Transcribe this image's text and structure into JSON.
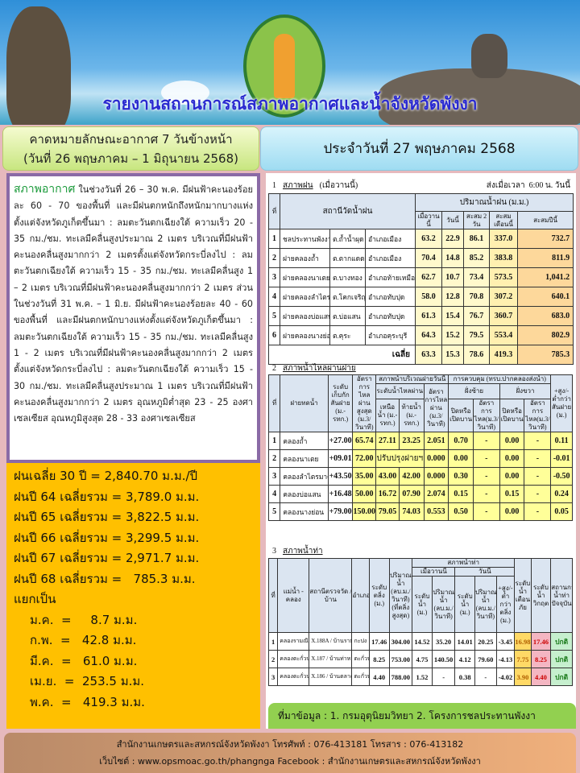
{
  "header": {
    "title": "รายงานสถานการณ์สภาพอากาศและน้ำจังหวัดพังงา",
    "logo_text": "กระทรวงเกษตรและสหกรณ์ MINISTRY OF AGRICULTURE AND COOPERATIVES"
  },
  "forecast": {
    "line1": "คาดหมายลักษณะอากาศ 7 วันข้างหน้า",
    "line2": "(วันที่ 26 พฤษภาคม – 1 มิถุนายน 2568)"
  },
  "report_date": "ประจำวันที่ 27 พฤษภาคม 2568",
  "weather": {
    "heading": "สภาพอากาศ",
    "body": " ในช่วงวันที่ 26 – 30 พ.ค. มีฝนฟ้าคะนองร้อยละ 60 - 70 ของพื้นที่ และมีฝนตกหนักถึงหนักมากบางแห่งตั้งแต่จังหวัดภูเก็ตขึ้นมา : ลมตะวันตกเฉียงใต้ ความเร็ว 20 - 35 กม./ชม. ทะเลมีคลื่นสูงประมาณ 2 เมตร บริเวณที่มีฝนฟ้าคะนองคลื่นสูงมากกว่า 2 เมตรตั้งแต่จังหวัดกระบี่ลงไป : ลมตะวันตกเฉียงใต้ ความเร็ว 15 - 35 กม./ชม. ทะเลมีคลื่นสูง 1 – 2 เมตร บริเวณที่มีฝนฟ้าคะนองคลื่นสูงมากกว่า 2 เมตร ส่วนในช่วงวันที่ 31 พ.ค. – 1 มิ.ย. มีฝนฟ้าคะนองร้อยละ 40 - 60 ของพื้นที่ และมีฝนตกหนักบางแห่งตั้งแต่จังหวัดภูเก็ตขึ้นมา : ลมตะวันตกเฉียงใต้ ความเร็ว 15 - 35 กม./ชม. ทะเลมีคลื่นสูง 1 - 2 เมตร บริเวณที่มีฝนฟ้าคะนองคลื่นสูงมากกว่า 2 เมตรตั้งแต่จังหวัดกระบี่ลงไป : ลมตะวันตกเฉียงใต้ ความเร็ว 15 - 30 กม./ชม. ทะเลมีคลื่นสูงประมาณ 1 เมตร บริเวณที่มีฝนฟ้าคะนองคลื่นสูงมากกว่า 2 เมตร อุณหภูมิต่ำสุด 23 - 25 องศาเซลเซียส อุณหภูมิสูงสุด 28 - 33 องศาเซลเซียส"
  },
  "rainfall_summary": {
    "lines": [
      "ฝนเฉลี่ย 30 ปี = 2,840.70 ม.ม./ปี",
      "ฝนปี 64 เฉลี่ยรวม = 3,789.0 ม.ม.",
      "ฝนปี 65 เฉลี่ยรวม = 3,822.5 ม.ม.",
      "ฝนปี 66 เฉลี่ยรวม = 3,299.5 ม.ม.",
      "ฝนปี 67 เฉลี่ยรวม = 2,971.7 ม.ม.",
      "ฝนปี 68 เฉลี่ยรวม =   785.3 ม.ม.",
      "แยกเป็น"
    ],
    "months": [
      "ม.ค.  =     8.7 ม.ม.",
      "ก.พ.  =   42.8 ม.ม.",
      "มี.ค.  =   61.0 ม.ม.",
      "เม.ย.  =  253.5 ม.ม.",
      "พ.ค.  =   419.3 ม.ม."
    ]
  },
  "table1": {
    "num": "1",
    "title": "สภาพฝน",
    "subtitle": "(เมื่อวานนี้)",
    "time_label": "ส่งเมื่อเวลา",
    "time": "6:00 น.",
    "time_suffix": "วันนี้",
    "headers": {
      "no": "ที่",
      "station": "สถานีวัดน้ำฝน",
      "group": "ปริมาณน้ำฝน (ม.ม.)",
      "cols": [
        "เมื่อวานนี้",
        "วันนี้",
        "สะสม 2 วัน",
        "สะสมเดือนนี้",
        "สะสมปีนี้"
      ]
    },
    "rows": [
      [
        "1",
        "ชลประทานพังงา",
        "ต.ถ้ำน้ำผุด",
        "อำเภอเมือง",
        "63.2",
        "22.9",
        "86.1",
        "337.0",
        "732.7"
      ],
      [
        "2",
        "ฝายคลองถ้ำ",
        "ต.ตากแดด",
        "อำเภอเมือง",
        "70.4",
        "14.8",
        "85.2",
        "383.8",
        "811.9"
      ],
      [
        "3",
        "ฝายคลองนาเตย",
        "ต.บางทอง",
        "อำเภอท้ายเหมือง",
        "62.7",
        "10.7",
        "73.4",
        "573.5",
        "1,041.2"
      ],
      [
        "4",
        "ฝายคลองลำไตรมาศ",
        "ต.โคกเจริญ",
        "อำเภอทับปุด",
        "58.0",
        "12.8",
        "70.8",
        "307.2",
        "640.1"
      ],
      [
        "5",
        "ฝายคลองบ่อแสน",
        "ต.บ่อแสน",
        "อำเภอทับปุด",
        "61.3",
        "15.4",
        "76.7",
        "360.7",
        "683.0"
      ],
      [
        "6",
        "ฝายคลองนางย่อน",
        "ต.คุระ",
        "อำเภอคุระบุรี",
        "64.3",
        "15.2",
        "79.5",
        "553.4",
        "802.9"
      ]
    ],
    "avg": {
      "label": "เฉลี่ย",
      "values": [
        "63.3",
        "15.3",
        "78.6",
        "419.3",
        "785.3"
      ]
    }
  },
  "table2": {
    "num": "2",
    "title": "สภาพน้ำไหลผ่านฝาย",
    "headers": {
      "no": "ที่",
      "weir": "ฝายทดน้ำ",
      "crest": "ระดับเก็บกักสันฝาย (ม.-รทก.)",
      "maxflow": "อัตราการไหลผ่านสูงสุด (ม.3/วินาที)",
      "today": "สภาพน้ำบริเวณฝายวันนี้",
      "level": "ระดับน้ำไหลผ่าน",
      "up": "เหนือน้ำ (ม.-รทก.)",
      "down": "ท้ายน้ำ (ม.-รทก.)",
      "rate": "อัตราการไหลผ่าน (ม.3/วินาที)",
      "control": "การควบคุม (ทรบ.ปากคลองส่งน้ำ)",
      "left": "ฝั่งซ้าย",
      "right": "ฝั่งขวา",
      "gate": "ปิดหรือเปิดบาน",
      "gaterate": "อัตราการไหล(ม.3/วินาที)",
      "diff": "+สูง/-ต่ำกว่าสันฝาย (ม.)"
    },
    "rows": [
      [
        "1",
        "คลองถ้ำ",
        "+27.00",
        "65.74",
        "27.11",
        "23.25",
        "2.051",
        "0.70",
        "-",
        "0.00",
        "-",
        "0.11"
      ],
      [
        "2",
        "คลองนาเตย",
        "+09.01",
        "72.00",
        "ปรับปรุงฝายฯ",
        "",
        "0.000",
        "0.00",
        "-",
        "0.00",
        "-",
        "-0.01"
      ],
      [
        "3",
        "คลองลำไตรมาศ",
        "+43.50",
        "35.00",
        "43.00",
        "42.00",
        "0.000",
        "0.30",
        "-",
        "0.00",
        "-",
        "-0.50"
      ],
      [
        "4",
        "คลองบ่อแสน",
        "+16.48",
        "50.00",
        "16.72",
        "07.90",
        "2.074",
        "0.15",
        "-",
        "0.15",
        "-",
        "0.24"
      ],
      [
        "5",
        "คลองนางย่อน",
        "+79.00",
        "150.00",
        "79.05",
        "74.03",
        "0.553",
        "0.50",
        "-",
        "0.00",
        "-",
        "0.05"
      ]
    ]
  },
  "table3": {
    "num": "3",
    "title": "สภาพน้ำท่า",
    "headers": {
      "no": "ที่",
      "river": "แม่น้ำ - คลอง",
      "station": "สถานีตรวจวัด / บ้าน",
      "district": "อำเภอ",
      "bank": "ระดับตลิ่ง (ม.)",
      "capacity": "ปริมาณน้ำ (ลบ.ม./วินาที) (ที่ตลิ่งสูงสุด)",
      "group": "สภาพน้ำท่า",
      "yesterday": "เมื่อวานนี้",
      "today": "วันนี้",
      "lvl": "ระดับน้ำ (ม.)",
      "vol": "ปริมาณน้ำ (ลบ.ม./วินาที)",
      "diff": "+สูง/-ต่ำกว่าตลิ่ง (ม.)",
      "warn": "ระดับน้ำเตือนภัย",
      "crit": "ระดับน้ำวิกฤต",
      "status": "สถานการณ์น้ำท่าปัจจุบัน"
    },
    "rows": [
      [
        "1",
        "คลองรามณีย์",
        "X.188A / บ้านรามณีย์",
        "กะปง",
        "17.46",
        "304.00",
        "14.52",
        "35.20",
        "14.01",
        "20.25",
        "-3.45",
        "16.98",
        "17.46",
        "ปกติ"
      ],
      [
        "2",
        "คลองตะกั่วป่า",
        "X.187 / บ้านท่าหลาม",
        "ตะกั่วป่า",
        "8.25",
        "753.00",
        "4.75",
        "140.50",
        "4.12",
        "79.60",
        "-4.13",
        "7.75",
        "8.25",
        "ปกติ"
      ],
      [
        "3",
        "คลองตะกั่วป่า",
        "X.186 / บ้านตลาดเก่า",
        "ตะกั่วป่า",
        "4.40",
        "788.00",
        "1.52",
        "-",
        "0.38",
        "-",
        "-4.02",
        "3.90",
        "4.40",
        "ปกติ"
      ]
    ]
  },
  "source": "ที่มาข้อมูล : 1. กรมอุตุนิยมวิทยา 2. โครงการชลประทานพังงา",
  "footer": {
    "line1": "สำนักงานเกษตรและสหกรณ์จังหวัดพังงา โทรศัพท์ : 076-413181    โทรสาร : 076-413182",
    "line2": "เว็บไซต์ : www.opsmoac.go.th/phangnga  Facebook : สำนักงานเกษตรและสหกรณ์จังหวัดพังงา"
  },
  "colors": {
    "background": "#e6b9bd",
    "weather_heading": "#1a9a3a",
    "rain_box": "#ffc000",
    "source_bar": "#92d050",
    "title": "#2a2ad0"
  }
}
